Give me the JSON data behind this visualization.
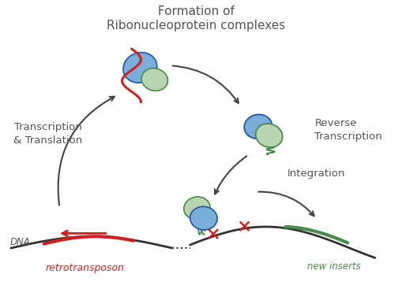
{
  "bg_color": "#ffffff",
  "text_color": "#555555",
  "title_top": "Formation of",
  "title_top2": "Ribonucleoprotein complexes",
  "label_transcription": "Transcription\n& Translation",
  "label_reverse": "Reverse\nTranscription",
  "label_integration": "Integration",
  "label_dna": "DNA",
  "label_retro": "retrotransposon",
  "label_new_inserts": "new inserts",
  "blue_color": "#7aaed6",
  "blue_dark": "#2255aa",
  "green_color": "#b8d4b0",
  "green_dark": "#4a8a4a",
  "red_color": "#cc2222",
  "arrow_color": "#444444",
  "dna_color": "#333333",
  "figsize": [
    5.04,
    3.62
  ],
  "dpi": 100
}
